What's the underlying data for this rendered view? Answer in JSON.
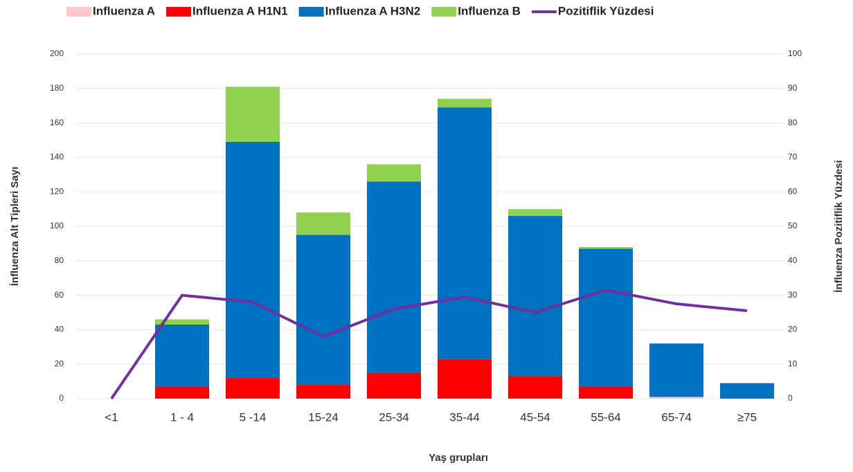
{
  "chart_data": {
    "type": "bar",
    "stacked": true,
    "categories": [
      "<1",
      "1 - 4",
      "5 -14",
      "15-24",
      "25-34",
      "35-44",
      "45-54",
      "55-64",
      "65-74",
      "≥75"
    ],
    "series": [
      {
        "name": "Influenza A",
        "color": "#ffc7ce",
        "values": [
          0,
          0,
          0,
          0,
          0,
          0,
          0,
          0,
          1,
          0
        ]
      },
      {
        "name": "Influenza A H1N1",
        "color": "#ff0000",
        "values": [
          0,
          7,
          12,
          8,
          15,
          23,
          13,
          7,
          0,
          0
        ]
      },
      {
        "name": "Influenza A H3N2",
        "color": "#0070c0",
        "values": [
          0,
          36,
          137,
          87,
          111,
          146,
          93,
          80,
          31,
          9
        ]
      },
      {
        "name": "Influenza B",
        "color": "#92d050",
        "values": [
          0,
          3,
          32,
          13,
          10,
          5,
          4,
          1,
          0,
          0
        ]
      },
      {
        "name": "Pozitiflik Yüzdesi",
        "color": "#7030a0",
        "type": "line",
        "axis": "y2",
        "values": [
          0,
          30,
          28,
          18,
          26,
          29.5,
          25,
          31.5,
          27.5,
          25.5
        ]
      }
    ],
    "xlabel": "Yaş grupları",
    "ylabel": "İnfluenza Alt Tipleri Sayı",
    "y2label": "İnfluenza Pozitiflik Yüzdesi",
    "ylim": [
      0,
      200
    ],
    "yticks": [
      0,
      20,
      40,
      60,
      80,
      100,
      120,
      140,
      160,
      180,
      200
    ],
    "y2lim": [
      0,
      100
    ],
    "y2ticks": [
      0,
      10,
      20,
      30,
      40,
      50,
      60,
      70,
      80,
      90,
      100
    ],
    "grid": true,
    "legend": "top"
  }
}
